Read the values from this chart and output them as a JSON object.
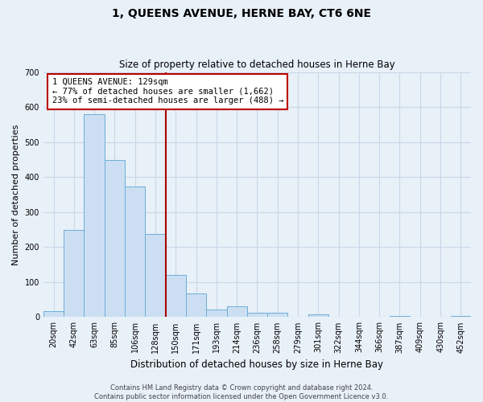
{
  "title": "1, QUEENS AVENUE, HERNE BAY, CT6 6NE",
  "subtitle": "Size of property relative to detached houses in Herne Bay",
  "xlabel": "Distribution of detached houses by size in Herne Bay",
  "ylabel": "Number of detached properties",
  "bar_labels": [
    "20sqm",
    "42sqm",
    "63sqm",
    "85sqm",
    "106sqm",
    "128sqm",
    "150sqm",
    "171sqm",
    "193sqm",
    "214sqm",
    "236sqm",
    "258sqm",
    "279sqm",
    "301sqm",
    "322sqm",
    "344sqm",
    "366sqm",
    "387sqm",
    "409sqm",
    "430sqm",
    "452sqm"
  ],
  "bar_values": [
    18,
    249,
    580,
    449,
    373,
    238,
    120,
    67,
    22,
    30,
    12,
    12,
    0,
    9,
    0,
    0,
    0,
    4,
    0,
    0,
    4
  ],
  "bar_color": "#ccdff2",
  "bar_edge_color": "#6baed6",
  "grid_color": "#c8d8e8",
  "background_color": "#e8f0f8",
  "plot_bg_color": "#e8f0f8",
  "vline_index": 5,
  "vline_color": "#aa0000",
  "annotation_line1": "1 QUEENS AVENUE: 129sqm",
  "annotation_line2": "← 77% of detached houses are smaller (1,662)",
  "annotation_line3": "23% of semi-detached houses are larger (488) →",
  "annotation_box_color": "#ffffff",
  "annotation_box_edge": "#bb0000",
  "ylim": [
    0,
    700
  ],
  "yticks": [
    0,
    100,
    200,
    300,
    400,
    500,
    600,
    700
  ],
  "footer": "Contains HM Land Registry data © Crown copyright and database right 2024.\nContains public sector information licensed under the Open Government Licence v3.0.",
  "title_fontsize": 10,
  "subtitle_fontsize": 8.5,
  "xlabel_fontsize": 8.5,
  "ylabel_fontsize": 8,
  "tick_fontsize": 7,
  "annotation_fontsize": 7.5,
  "footer_fontsize": 6
}
